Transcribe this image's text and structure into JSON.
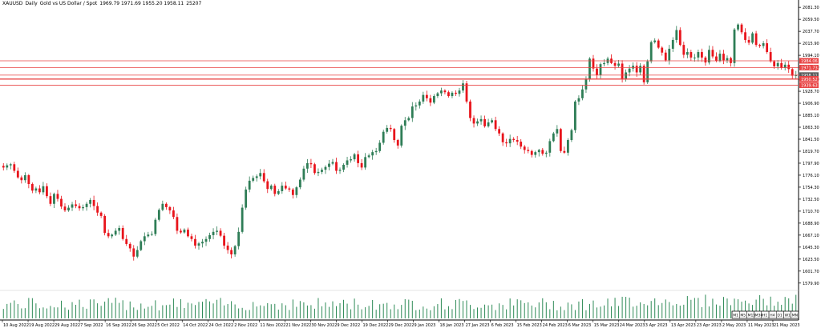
{
  "header": {
    "symbol": "XAUUSD",
    "timeframe": "Daily",
    "description": "Gold vs US Dollar / Spot",
    "ohlc": "1969.79 1971.69 1955.20 1958.11",
    "volume": "25207"
  },
  "colors": {
    "up": "#2e7d56",
    "down": "#e8141b",
    "level": "#e84545",
    "volume": "#2e8b57",
    "grid_text": "#000000",
    "axis": "#000000",
    "current_price_bg": "#5a5a5a"
  },
  "timeframes": [
    "M1",
    "M5",
    "M15",
    "M30",
    "H1",
    "H4",
    "D1",
    "W1",
    "MN"
  ],
  "chart_data": {
    "type": "candlestick",
    "title": "XAUUSD, Daily: Gold vs US Dollar / Spot",
    "y_ticks": [
      "2081.30",
      "2059.50",
      "2037.70",
      "2015.90",
      "1994.10",
      "1972.30",
      "1950.50",
      "1928.70",
      "1906.90",
      "1885.10",
      "1863.30",
      "1841.50",
      "1819.70",
      "1797.90",
      "1776.10",
      "1754.30",
      "1732.50",
      "1710.70",
      "1688.90",
      "1667.10",
      "1645.30",
      "1623.50",
      "1601.70",
      "1579.90"
    ],
    "ylim": [
      1568,
      2083
    ],
    "x_labels": [
      "10 Aug 2022",
      "19 Aug 2022",
      "29 Aug 2022",
      "7 Sep 2022",
      "16 Sep 2022",
      "26 Sep 2022",
      "5 Oct 2022",
      "14 Oct 2022",
      "24 Oct 2022",
      "2 Nov 2022",
      "11 Nov 2022",
      "21 Nov 2022",
      "30 Nov 2022",
      "9 Dec 2022",
      "19 Dec 2022",
      "29 Dec 2022",
      "9 Jan 2023",
      "18 Jan 2023",
      "27 Jan 2023",
      "6 Feb 2023",
      "15 Feb 2023",
      "24 Feb 2023",
      "6 Mar 2023",
      "15 Mar 2023",
      "24 Mar 2023",
      "3 Apr 2023",
      "13 Apr 2023",
      "23 Apr 2023",
      "2 May 2023",
      "11 May 2023",
      "21 May 2023"
    ],
    "levels": [
      {
        "label": "1984.06",
        "value": 1984.06
      },
      {
        "label": "1971.73",
        "value": 1971.73
      },
      {
        "label": "1958.11",
        "value": 1958.11
      },
      {
        "label": "1951.30",
        "value": 1951.3
      },
      {
        "label": "1950.52",
        "value": 1950.52
      },
      {
        "label": "1939.63",
        "value": 1939.63
      }
    ],
    "closes": [
      1790,
      1794,
      1796,
      1784,
      1772,
      1767,
      1776,
      1760,
      1748,
      1752,
      1745,
      1756,
      1738,
      1724,
      1742,
      1733,
      1719,
      1712,
      1717,
      1723,
      1720,
      1716,
      1718,
      1724,
      1731,
      1720,
      1708,
      1702,
      1671,
      1665,
      1668,
      1675,
      1680,
      1660,
      1651,
      1643,
      1628,
      1640,
      1656,
      1665,
      1668,
      1669,
      1695,
      1713,
      1724,
      1718,
      1712,
      1700,
      1675,
      1672,
      1677,
      1665,
      1660,
      1648,
      1652,
      1655,
      1660,
      1667,
      1673,
      1675,
      1666,
      1648,
      1640,
      1632,
      1647,
      1673,
      1717,
      1750,
      1766,
      1771,
      1774,
      1780,
      1765,
      1751,
      1757,
      1742,
      1747,
      1757,
      1752,
      1750,
      1740,
      1754,
      1768,
      1788,
      1798,
      1796,
      1780,
      1782,
      1786,
      1791,
      1797,
      1800,
      1784,
      1786,
      1795,
      1803,
      1805,
      1814,
      1798,
      1790,
      1809,
      1812,
      1818,
      1820,
      1835,
      1855,
      1862,
      1860,
      1840,
      1830,
      1866,
      1876,
      1880,
      1901,
      1903,
      1910,
      1922,
      1916,
      1908,
      1920,
      1925,
      1930,
      1927,
      1920,
      1926,
      1924,
      1930,
      1943,
      1910,
      1880,
      1870,
      1874,
      1878,
      1865,
      1872,
      1876,
      1860,
      1852,
      1836,
      1834,
      1842,
      1840,
      1837,
      1828,
      1822,
      1820,
      1813,
      1818,
      1822,
      1815,
      1817,
      1838,
      1852,
      1860,
      1820,
      1817,
      1840,
      1858,
      1910,
      1916,
      1932,
      1950,
      1988,
      1970,
      1958,
      1978,
      1980,
      1988,
      1980,
      1975,
      1979,
      1950,
      1963,
      1970,
      1975,
      1963,
      1975,
      1945,
      1983,
      2018,
      2021,
      2008,
      1999,
      1985,
      2006,
      2022,
      2040,
      2013,
      1995,
      2000,
      1990,
      1990,
      2000,
      1990,
      1981,
      2004,
      1992,
      1984,
      1997,
      1985,
      1989,
      1980,
      2041,
      2050,
      2036,
      2022,
      2017,
      2034,
      2013,
      2011,
      2016,
      2000,
      1983,
      1974,
      1980,
      1971,
      1977,
      1969,
      1957,
      1958
    ]
  }
}
